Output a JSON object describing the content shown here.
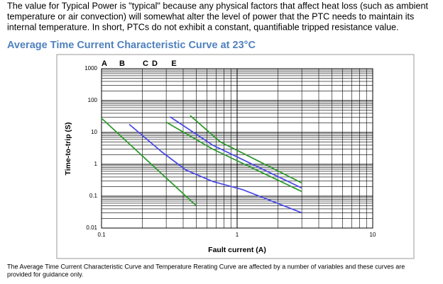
{
  "paragraph": [
    "The value for Typical Power is \"typical\" because any physical factors that affect heat loss (such as ambient",
    "temperature or air convection) will somewhat alter the level of power that the PTC needs to maintain its",
    "internal temperature. In short, PTCs do not exhibit a constant, quantifiable tripped resistance value."
  ],
  "heading": "Average Time Current Characteristic Curve at 23°C",
  "chart_data": {
    "type": "line",
    "x_label": "Fault current (A)",
    "y_label": "Time-to-trip (S)",
    "xlim": [
      0.1,
      10
    ],
    "ylim": [
      0.01,
      1000
    ],
    "xticks": [
      0.1,
      1,
      10
    ],
    "yticks": [
      0.01,
      0.1,
      1,
      10,
      100,
      1000
    ],
    "log_x": true,
    "log_y": true,
    "grid": true,
    "series": [
      {
        "name": "A",
        "color": "#2e9a2e",
        "x": [
          0.1,
          0.5
        ],
        "values": [
          28,
          0.05
        ]
      },
      {
        "name": "B",
        "color": "#4a4ae8",
        "x": [
          0.16,
          0.28,
          0.42,
          0.66,
          1.1,
          3
        ],
        "values": [
          18,
          2.4,
          0.66,
          0.29,
          0.16,
          0.03
        ]
      },
      {
        "name": "C",
        "color": "#2e9a2e",
        "x": [
          0.3,
          0.66,
          3
        ],
        "values": [
          21,
          3,
          0.14
        ]
      },
      {
        "name": "D",
        "color": "#4a4ae8",
        "x": [
          0.32,
          0.66,
          3
        ],
        "values": [
          31,
          4,
          0.18
        ]
      },
      {
        "name": "E",
        "color": "#2e9a2e",
        "x": [
          0.45,
          0.75,
          3
        ],
        "values": [
          34,
          5.1,
          0.26
        ]
      }
    ]
  },
  "caption": [
    "The Average Time Current Characteristic Curve and Temperature Rerating Curve are affected by a number of variables and these curves are",
    "provided for guidance only."
  ]
}
